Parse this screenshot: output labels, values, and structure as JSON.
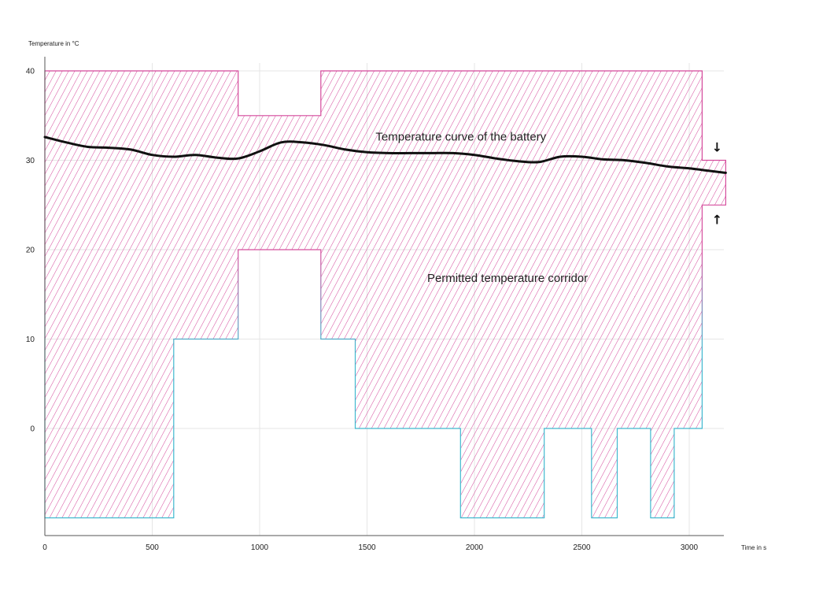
{
  "chart_data": {
    "type": "area",
    "ylabel": "Temperature in °C",
    "xlabel": "Time in s",
    "xlim": [
      0,
      3170
    ],
    "ylim": [
      -11,
      42
    ],
    "x_ticks": [
      0,
      500,
      1000,
      1500,
      2000,
      2500,
      3000
    ],
    "y_ticks": [
      0,
      10,
      20,
      30,
      40
    ],
    "grid": true,
    "legend": "none",
    "colors": {
      "corridor_top": "#d4479a",
      "corridor_bottom": "#3fb8cf",
      "curve": "#111111",
      "grid": "#e6e6e6"
    },
    "series": [
      {
        "name": "Permitted temperature corridor",
        "upper": {
          "x": [
            0,
            900,
            900,
            1285,
            1285,
            3060,
            3060,
            3170
          ],
          "y": [
            40,
            40,
            35,
            35,
            40,
            40,
            30,
            30
          ]
        },
        "lower": {
          "x": [
            0,
            600,
            600,
            900,
            900,
            1285,
            1285,
            1445,
            1445,
            1935,
            1935,
            2325,
            2325,
            2545,
            2545,
            2665,
            2665,
            2820,
            2820,
            2930,
            2930,
            3060,
            3060,
            3170
          ],
          "y": [
            -10,
            -10,
            10,
            10,
            20,
            20,
            10,
            10,
            0,
            0,
            -10,
            -10,
            0,
            0,
            -10,
            -10,
            0,
            0,
            -10,
            -10,
            0,
            0,
            25,
            25
          ]
        }
      },
      {
        "name": "Temperature curve of the battery",
        "x": [
          0,
          100,
          200,
          300,
          400,
          500,
          600,
          700,
          800,
          900,
          1000,
          1100,
          1200,
          1300,
          1400,
          1500,
          1600,
          1700,
          1800,
          1900,
          2000,
          2100,
          2200,
          2300,
          2400,
          2500,
          2600,
          2700,
          2800,
          2900,
          3000,
          3100,
          3170
        ],
        "y": [
          32.6,
          32.0,
          31.5,
          31.4,
          31.2,
          30.6,
          30.4,
          30.6,
          30.3,
          30.2,
          31.0,
          32.0,
          32.0,
          31.7,
          31.2,
          30.9,
          30.8,
          30.8,
          30.8,
          30.8,
          30.6,
          30.2,
          29.9,
          29.8,
          30.4,
          30.4,
          30.1,
          30.0,
          29.7,
          29.3,
          29.1,
          28.8,
          28.6
        ]
      }
    ],
    "annotations": [
      {
        "text": "Temperature curve of the battery",
        "x": 1540,
        "y": 32.2
      },
      {
        "text": "Permitted temperature corridor",
        "x": 1780,
        "y": 16.4
      },
      {
        "text": "↓",
        "x": 3130,
        "y": 31.4
      },
      {
        "text": "↑",
        "x": 3130,
        "y": 23.3
      }
    ]
  }
}
